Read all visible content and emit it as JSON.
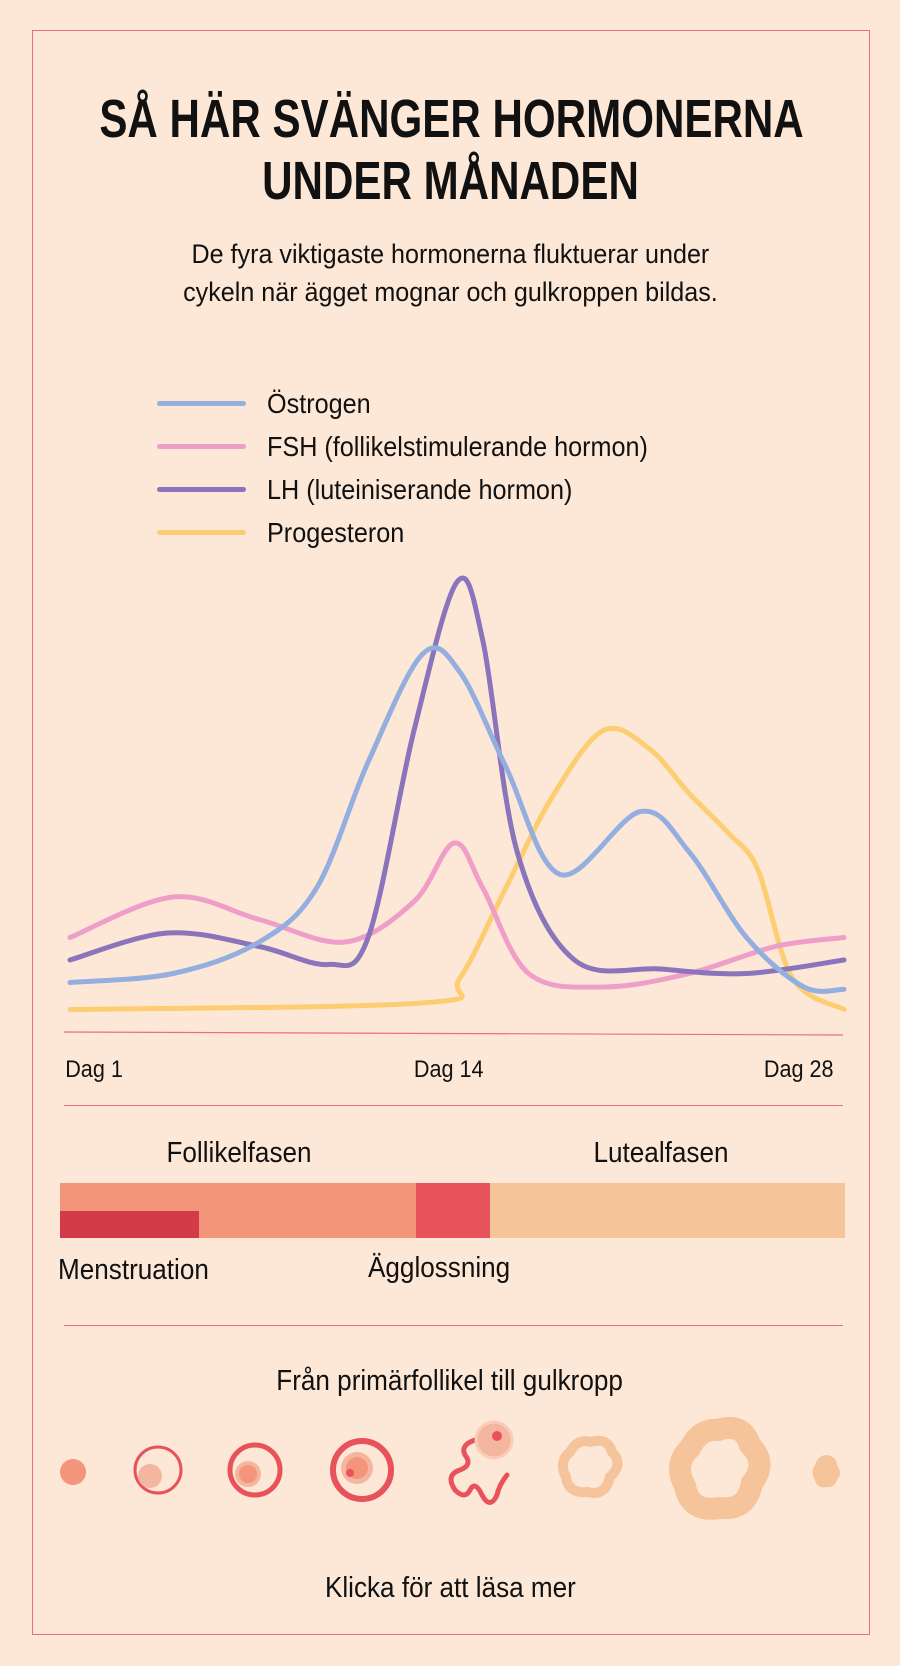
{
  "title_lines": [
    "SÅ HÄR SVÄNGER HORMONERNA",
    "UNDER MÅNADEN"
  ],
  "subtitle_lines": [
    "De fyra viktigaste hormonerna fluktuerar under",
    "cykeln när ägget mognar och gulkroppen bildas."
  ],
  "colors": {
    "background": "#fde8d8",
    "border": "#e8707a",
    "estrogen": "#94aedf",
    "fsh": "#ef9ec8",
    "lh": "#8a74bb",
    "progesterone": "#fdcd72",
    "follicular_phase": "#f2957a",
    "ovulation": "#e8525a",
    "luteal_phase": "#f5c49a",
    "menstruation": "#d33b48"
  },
  "chart_data": {
    "type": "line",
    "title": "",
    "xlabel": "",
    "ylabel": "",
    "x_tick_labels": [
      "Dag 1",
      "Dag 14",
      "Dag 28"
    ],
    "x_ticks": [
      1,
      14,
      28
    ],
    "xlim": [
      1,
      28
    ],
    "ylim": [
      0,
      100
    ],
    "grid": false,
    "legend_position": "top-left",
    "series": [
      {
        "name": "Östrogen",
        "color": "#94aedf",
        "points": [
          [
            1,
            11
          ],
          [
            4.6,
            13
          ],
          [
            7.6,
            20
          ],
          [
            9.6,
            32
          ],
          [
            11.4,
            60
          ],
          [
            13.3,
            84
          ],
          [
            14.6,
            80
          ],
          [
            16.2,
            59
          ],
          [
            18.1,
            35
          ],
          [
            20.9,
            49
          ],
          [
            22.6,
            40
          ],
          [
            24.6,
            21
          ],
          [
            26.6,
            10
          ],
          [
            28,
            9.5
          ]
        ]
      },
      {
        "name": "FSH (follikelstimulerande hormon)",
        "color": "#ef9ec8",
        "points": [
          [
            1,
            21
          ],
          [
            4.6,
            30
          ],
          [
            7.6,
            25
          ],
          [
            10.6,
            20
          ],
          [
            13,
            29
          ],
          [
            14.4,
            42
          ],
          [
            15.4,
            32
          ],
          [
            17,
            13
          ],
          [
            19.6,
            10
          ],
          [
            22.6,
            13
          ],
          [
            25.6,
            19
          ],
          [
            28,
            21
          ]
        ]
      },
      {
        "name": "LH (luteiniserande hormon)",
        "color": "#8a74bb",
        "points": [
          [
            1,
            16
          ],
          [
            4.4,
            22
          ],
          [
            7.6,
            19
          ],
          [
            10,
            15
          ],
          [
            11.4,
            21
          ],
          [
            13,
            67
          ],
          [
            14.5,
            100
          ],
          [
            15.4,
            87
          ],
          [
            16.6,
            40
          ],
          [
            18.6,
            16
          ],
          [
            21.6,
            14
          ],
          [
            24.6,
            13
          ],
          [
            28,
            16
          ]
        ]
      },
      {
        "name": "Progesteron",
        "color": "#fdcd72",
        "points": [
          [
            1,
            5
          ],
          [
            13.4,
            6.5
          ],
          [
            14.6,
            12
          ],
          [
            16.2,
            32
          ],
          [
            17.8,
            52
          ],
          [
            19.6,
            67
          ],
          [
            21.2,
            63
          ],
          [
            22.6,
            53
          ],
          [
            24,
            44
          ],
          [
            25,
            36
          ],
          [
            26.2,
            12
          ],
          [
            28,
            5
          ]
        ]
      }
    ]
  },
  "phases": {
    "follicular_label": "Follikelfasen",
    "luteal_label": "Lutealfasen",
    "menstruation_label": "Menstruation",
    "ovulation_label": "Ägglossning"
  },
  "follicle_section": {
    "title": "Från primärfollikel till gulkropp",
    "stages": [
      "primary-follicle-icon",
      "secondary-follicle-icon",
      "tertiary-follicle-icon",
      "mature-follicle-icon",
      "ovulation-follicle-icon",
      "corpus-luteum-early-icon",
      "corpus-luteum-icon",
      "corpus-albicans-icon"
    ]
  },
  "cta": "Klicka för att läsa mer"
}
